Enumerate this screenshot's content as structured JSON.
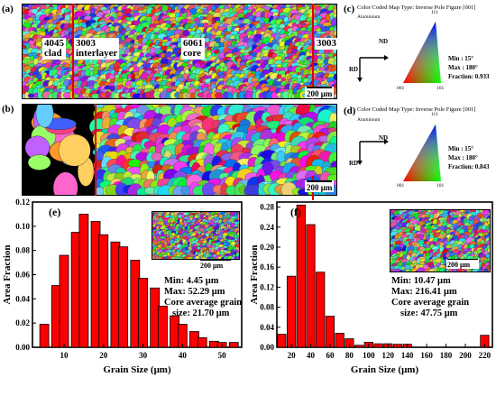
{
  "panels": {
    "a": {
      "letter": "(a)",
      "regions": [
        {
          "line1": "4045",
          "line2": "clad"
        },
        {
          "line1": "3003",
          "line2": "interlayer"
        },
        {
          "line1": "6061",
          "line2": "core"
        },
        {
          "line1": "3003",
          "line2": ""
        }
      ],
      "scale": "200 μm"
    },
    "b": {
      "letter": "(b)",
      "scale": "200 μm"
    },
    "c": {
      "letter": "(c)",
      "title": "Color Coded Map Type: Inverse Pole Figure [001]",
      "material": "Aluminium",
      "axis_nd": "ND",
      "axis_rd": "RD",
      "tri_top": "111",
      "tri_left": "001",
      "tri_right": "101",
      "min": "Min : 15°",
      "max": "Max : 180°",
      "fraction": "Fraction:  0.933"
    },
    "d": {
      "letter": "(d)",
      "title": "Color Coded Map Type: Inverse Pole Figure [001]",
      "material": "Aluminium",
      "axis_nd": "ND",
      "axis_rd": "RD",
      "tri_top": "111",
      "tri_left": "001",
      "tri_right": "101",
      "min": "Min : 15°",
      "max": "Max : 180°",
      "fraction": "Fraction:  0.843"
    },
    "e": {
      "letter": "(e)",
      "scale": "200 μm",
      "stats": [
        "Min: 4.45 μm",
        "Max: 52.29 μm",
        "Core average grain",
        "size: 21.70 μm"
      ]
    },
    "f": {
      "letter": "(f)",
      "scale": "200 μm",
      "stats": [
        "Min: 10.47 μm",
        "Max: 216.41 μm",
        "Core average grain",
        "size: 47.75 μm"
      ]
    }
  },
  "chart_data": [
    {
      "type": "bar",
      "panel": "e",
      "xlabel": "Grain Size (μm)",
      "ylabel": "Area Fraction",
      "xlim": [
        2,
        55
      ],
      "ylim": [
        0,
        0.12
      ],
      "xticks": [
        10,
        20,
        30,
        40,
        50
      ],
      "yticks": [
        0.0,
        0.02,
        0.04,
        0.06,
        0.08,
        0.1,
        0.12
      ],
      "x": [
        5,
        8,
        10,
        13,
        15,
        18,
        20,
        23,
        25,
        28,
        30,
        33,
        35,
        38,
        40,
        43,
        45,
        48,
        50,
        53
      ],
      "values": [
        0.019,
        0.051,
        0.076,
        0.095,
        0.11,
        0.104,
        0.093,
        0.087,
        0.083,
        0.072,
        0.057,
        0.049,
        0.034,
        0.026,
        0.019,
        0.013,
        0.008,
        0.005,
        0.004,
        0.004
      ],
      "bar_color": "#ff0000"
    },
    {
      "type": "bar",
      "panel": "f",
      "xlabel": "Grain Size (μm)",
      "ylabel": "Area Fraction",
      "xlim": [
        5,
        228
      ],
      "ylim": [
        0,
        0.29
      ],
      "xticks": [
        20,
        40,
        60,
        80,
        100,
        120,
        140,
        160,
        180,
        200,
        220
      ],
      "yticks": [
        0.0,
        0.04,
        0.08,
        0.12,
        0.16,
        0.2,
        0.24,
        0.28
      ],
      "x": [
        10,
        20,
        30,
        40,
        50,
        60,
        70,
        80,
        90,
        100,
        110,
        120,
        130,
        140,
        220
      ],
      "values": [
        0.026,
        0.142,
        0.284,
        0.245,
        0.15,
        0.062,
        0.028,
        0.017,
        0.004,
        0.01,
        0.007,
        0.007,
        0.006,
        0.006,
        0.024
      ],
      "bar_color": "#ff0000"
    }
  ]
}
